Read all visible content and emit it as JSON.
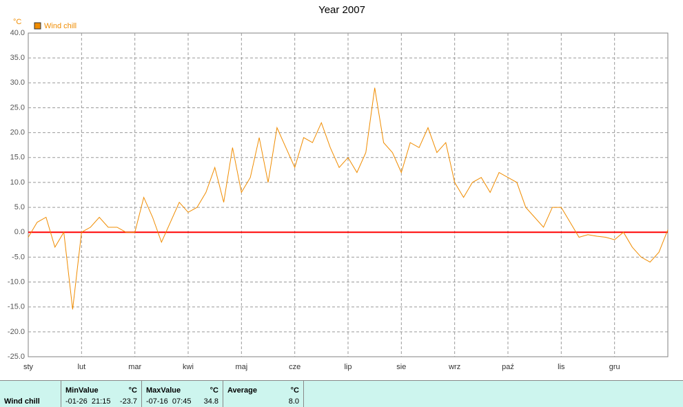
{
  "chart_data": {
    "type": "line",
    "title": "Year 2007",
    "y_unit": "°C",
    "categories": [
      "sty",
      null,
      null,
      null,
      null,
      null,
      "lut",
      null,
      null,
      null,
      null,
      null,
      "mar",
      null,
      null,
      null,
      null,
      null,
      "kwi",
      null,
      null,
      null,
      null,
      null,
      "maj",
      null,
      null,
      null,
      null,
      null,
      "cze",
      null,
      null,
      null,
      null,
      null,
      "lip",
      null,
      null,
      null,
      null,
      null,
      "sie",
      null,
      null,
      null,
      null,
      null,
      "wrz",
      null,
      null,
      null,
      null,
      null,
      "paź",
      null,
      null,
      null,
      null,
      null,
      "lis",
      null,
      null,
      null,
      null,
      null,
      "gru",
      null,
      null,
      null,
      null,
      null,
      null
    ],
    "series": [
      {
        "name": "Wind chill",
        "color": "#f08c00",
        "values": [
          -1,
          2,
          3,
          -3,
          0,
          -15.5,
          0,
          1,
          3,
          1,
          1,
          0,
          0,
          7,
          3,
          -2,
          2,
          6,
          4,
          5,
          8,
          13,
          6,
          17,
          8,
          11,
          19,
          10,
          21,
          17,
          13,
          19,
          18,
          22,
          17,
          13,
          15,
          12,
          16,
          29,
          18,
          16,
          12,
          18,
          17,
          21,
          16,
          18,
          10,
          7,
          10,
          11,
          8,
          12,
          11,
          10,
          5,
          3,
          1,
          5,
          5,
          2,
          -1,
          -0.5,
          -0.8,
          -1,
          -1.5,
          0,
          -3,
          -5,
          -6,
          -4,
          0.5
        ]
      }
    ],
    "ylim": [
      -25,
      40
    ],
    "yticks": [
      {
        "value": -25,
        "label": "-25.0"
      },
      {
        "value": -20,
        "label": "-20.0"
      },
      {
        "value": -15,
        "label": "-15.0"
      },
      {
        "value": -10,
        "label": "-10.0"
      },
      {
        "value": -5,
        "label": "-5.0"
      },
      {
        "value": 0,
        "label": "0.0"
      },
      {
        "value": 5,
        "label": "5.0"
      },
      {
        "value": 10,
        "label": "10.0"
      },
      {
        "value": 15,
        "label": "15.0"
      },
      {
        "value": 20,
        "label": "20.0"
      },
      {
        "value": 25,
        "label": "25.0"
      },
      {
        "value": 30,
        "label": "30.0"
      },
      {
        "value": 35,
        "label": "35.0"
      },
      {
        "value": 40,
        "label": "40.0"
      }
    ],
    "grid": true,
    "reference_line": {
      "value": 0,
      "color": "#ff0000"
    }
  },
  "summary": {
    "row_label": "Wind chill",
    "min": {
      "header": "MinValue",
      "unit": "°C",
      "time": "-01-26  21:15",
      "value": "-23.7"
    },
    "max": {
      "header": "MaxValue",
      "unit": "°C",
      "time": "-07-16  07:45",
      "value": "34.8"
    },
    "avg": {
      "header": "Average",
      "unit": "°C",
      "value": "8.0"
    }
  }
}
